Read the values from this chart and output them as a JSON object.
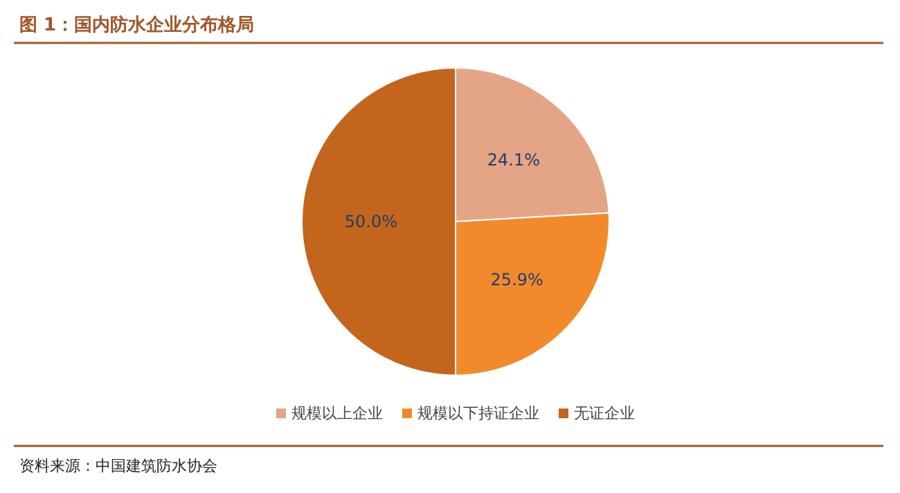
{
  "chart_data": {
    "type": "pie",
    "title": "图 1：国内防水企业分布格局",
    "categories": [
      "规模以上企业",
      "规模以下持证企业",
      "无证企业"
    ],
    "values": [
      24.1,
      25.9,
      50.0
    ],
    "value_labels": [
      "24.1%",
      "25.9%",
      "50.0%"
    ],
    "colors": [
      "#e3a585",
      "#f28a2c",
      "#c4651e"
    ],
    "legend": "bottom",
    "annotations": [
      "资料来源：中国建筑防水协会"
    ]
  }
}
